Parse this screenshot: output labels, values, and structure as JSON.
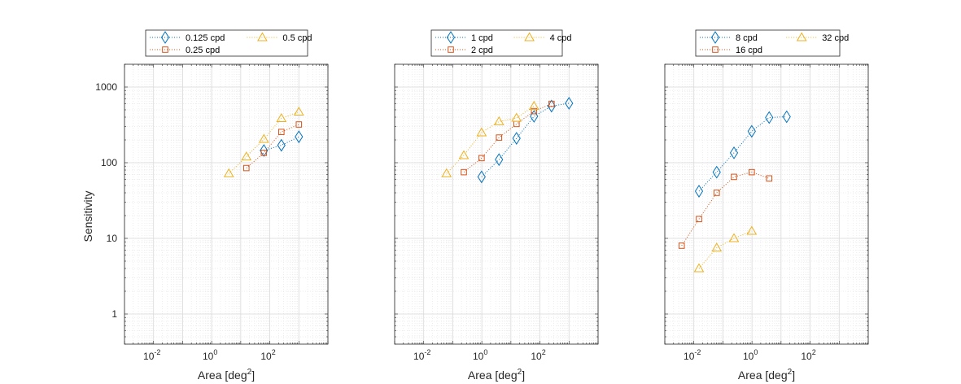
{
  "figure": {
    "background": "#ffffff"
  },
  "chart_data": [
    {
      "type": "scatter",
      "xscale": "log",
      "yscale": "log",
      "xlim": [
        0.001,
        10000
      ],
      "ylim": [
        0.4,
        2000
      ],
      "xlabel_base": "Area [deg",
      "xlabel_sup": "2",
      "xlabel_close": "]",
      "ylabel": "Sensitivity",
      "grid": true,
      "legend_position": "top",
      "xticks": [
        {
          "base": "10",
          "exp": "-2",
          "value": 0.01
        },
        {
          "base": "10",
          "exp": "0",
          "value": 1
        },
        {
          "base": "10",
          "exp": "2",
          "value": 100
        }
      ],
      "yticks": [
        {
          "label": "1",
          "value": 1
        },
        {
          "label": "10",
          "value": 10
        },
        {
          "label": "100",
          "value": 100
        },
        {
          "label": "1000",
          "value": 1000
        }
      ],
      "series": [
        {
          "name": "0.125 cpd",
          "marker": "diamond",
          "color": "#0072BD",
          "x": [
            62.5,
            250,
            1000
          ],
          "y": [
            145,
            170,
            220
          ]
        },
        {
          "name": "0.25 cpd",
          "marker": "square",
          "color": "#D95319",
          "x": [
            15.6,
            62.5,
            250,
            1000
          ],
          "y": [
            85,
            135,
            255,
            320
          ]
        },
        {
          "name": "0.5 cpd",
          "marker": "triangle",
          "color": "#EDB120",
          "x": [
            3.9,
            15.6,
            62.5,
            250,
            1000
          ],
          "y": [
            72,
            120,
            205,
            385,
            470
          ]
        }
      ]
    },
    {
      "type": "scatter",
      "xscale": "log",
      "yscale": "log",
      "xlim": [
        0.001,
        10000
      ],
      "ylim": [
        0.4,
        2000
      ],
      "xlabel_base": "Area [deg",
      "xlabel_sup": "2",
      "xlabel_close": "]",
      "ylabel": "",
      "grid": true,
      "legend_position": "top",
      "xticks": [
        {
          "base": "10",
          "exp": "-2",
          "value": 0.01
        },
        {
          "base": "10",
          "exp": "0",
          "value": 1
        },
        {
          "base": "10",
          "exp": "2",
          "value": 100
        }
      ],
      "yticks": [],
      "series": [
        {
          "name": "1 cpd",
          "marker": "diamond",
          "color": "#0072BD",
          "x": [
            0.98,
            3.9,
            15.6,
            62.5,
            250,
            1000
          ],
          "y": [
            65,
            110,
            210,
            410,
            560,
            610
          ]
        },
        {
          "name": "2 cpd",
          "marker": "square",
          "color": "#D95319",
          "x": [
            0.24,
            0.98,
            3.9,
            15.6,
            62.5,
            250
          ],
          "y": [
            75,
            115,
            215,
            325,
            480,
            600
          ]
        },
        {
          "name": "4 cpd",
          "marker": "triangle",
          "color": "#EDB120",
          "x": [
            0.061,
            0.24,
            0.98,
            3.9,
            15.6,
            62.5
          ],
          "y": [
            72,
            125,
            250,
            350,
            390,
            560
          ]
        }
      ]
    },
    {
      "type": "scatter",
      "xscale": "log",
      "yscale": "log",
      "xlim": [
        0.001,
        10000
      ],
      "ylim": [
        0.4,
        2000
      ],
      "xlabel_base": "Area [deg",
      "xlabel_sup": "2",
      "xlabel_close": "]",
      "ylabel": "",
      "grid": true,
      "legend_position": "top",
      "xticks": [
        {
          "base": "10",
          "exp": "-2",
          "value": 0.01
        },
        {
          "base": "10",
          "exp": "0",
          "value": 1
        },
        {
          "base": "10",
          "exp": "2",
          "value": 100
        }
      ],
      "yticks": [],
      "series": [
        {
          "name": "8 cpd",
          "marker": "diamond",
          "color": "#0072BD",
          "x": [
            0.015,
            0.061,
            0.24,
            0.98,
            3.9,
            15.6
          ],
          "y": [
            42,
            75,
            135,
            260,
            395,
            405
          ]
        },
        {
          "name": "16 cpd",
          "marker": "square",
          "color": "#D95319",
          "x": [
            0.0038,
            0.015,
            0.061,
            0.24,
            0.98,
            3.9
          ],
          "y": [
            8,
            18,
            40,
            65,
            75,
            62
          ]
        },
        {
          "name": "32 cpd",
          "marker": "triangle",
          "color": "#EDB120",
          "x": [
            0.015,
            0.061,
            0.24,
            0.98
          ],
          "y": [
            4,
            7.5,
            10,
            12.5
          ]
        }
      ]
    }
  ]
}
